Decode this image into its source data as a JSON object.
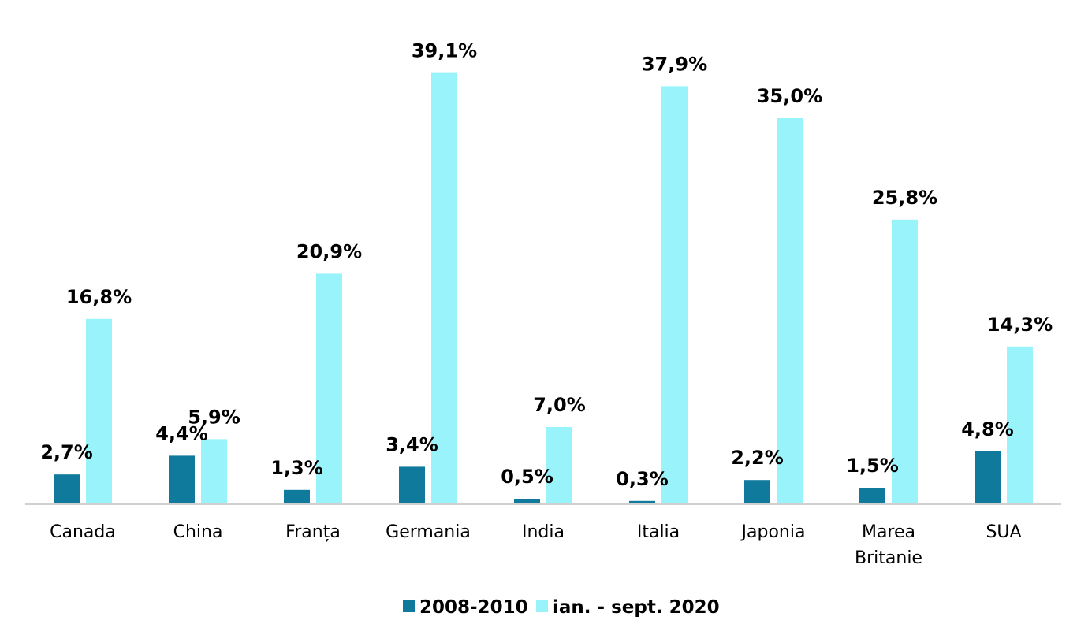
{
  "chart_data": {
    "type": "bar",
    "categories": [
      "Canada",
      "China",
      "Franța",
      "Germania",
      "India",
      "Italia",
      "Japonia",
      "Marea Britanie",
      "SUA"
    ],
    "category_lines": [
      [
        "Canada"
      ],
      [
        "China"
      ],
      [
        "Franța"
      ],
      [
        "Germania"
      ],
      [
        "India"
      ],
      [
        "Italia"
      ],
      [
        "Japonia"
      ],
      [
        "Marea",
        "Britanie"
      ],
      [
        "SUA"
      ]
    ],
    "series": [
      {
        "name": "2008-2010",
        "color": "#0f7a9c",
        "values": [
          2.7,
          4.4,
          1.3,
          3.4,
          0.5,
          0.3,
          2.2,
          1.5,
          4.8
        ],
        "labels": [
          "2,7%",
          "4,4%",
          "1,3%",
          "3,4%",
          "0,5%",
          "0,3%",
          "2,2%",
          "1,5%",
          "4,8%"
        ]
      },
      {
        "name": "ian. - sept. 2020",
        "color": "#98f4fa",
        "values": [
          16.8,
          5.9,
          20.9,
          39.1,
          7.0,
          37.9,
          35.0,
          25.8,
          14.3
        ],
        "labels": [
          "16,8%",
          "5,9%",
          "20,9%",
          "39,1%",
          "7,0%",
          "37,9%",
          "35,0%",
          "25,8%",
          "14,3%"
        ]
      }
    ],
    "ylim": [
      0,
      40
    ],
    "grid": false,
    "legend_position": "bottom",
    "axis_color": "#d0d0d0"
  }
}
